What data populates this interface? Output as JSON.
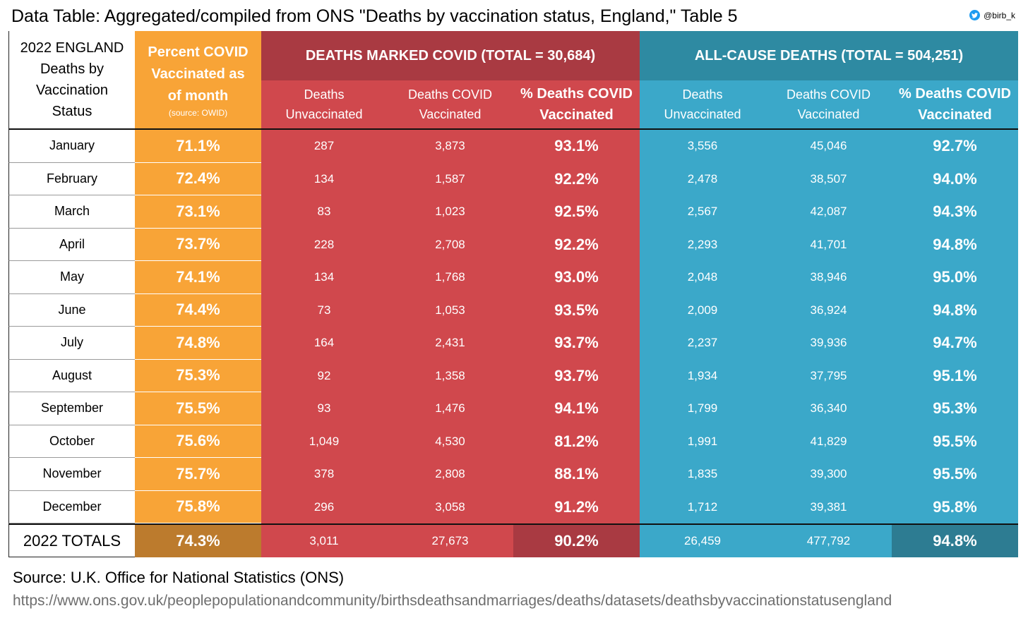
{
  "title": "Data Table: Aggregated/compiled from ONS \"Deaths by vaccination status, England,\" Table 5",
  "handle": "@birb_k",
  "icon": "twitter-bird-icon",
  "header": {
    "label": "2022 ENGLAND Deaths by Vaccination Status",
    "pct_title": "Percent COVID Vaccinated as of month",
    "pct_source": "(source: OWID)",
    "covid_group": "DEATHS MARKED COVID (TOTAL = 30,684)",
    "all_group": "ALL-CAUSE DEATHS (TOTAL = 504,251)",
    "covid_cols": [
      "Deaths Unvaccinated",
      "Deaths COVID Vaccinated",
      "% Deaths COVID Vaccinated"
    ],
    "all_cols": [
      "Deaths Unvaccinated",
      "Deaths COVID Vaccinated",
      "% Deaths COVID Vaccinated"
    ]
  },
  "rows": [
    [
      "January",
      "71.1%",
      "287",
      "3,873",
      "93.1%",
      "3,556",
      "45,046",
      "92.7%"
    ],
    [
      "February",
      "72.4%",
      "134",
      "1,587",
      "92.2%",
      "2,478",
      "38,507",
      "94.0%"
    ],
    [
      "March",
      "73.1%",
      "83",
      "1,023",
      "92.5%",
      "2,567",
      "42,087",
      "94.3%"
    ],
    [
      "April",
      "73.7%",
      "228",
      "2,708",
      "92.2%",
      "2,293",
      "41,701",
      "94.8%"
    ],
    [
      "May",
      "74.1%",
      "134",
      "1,768",
      "93.0%",
      "2,048",
      "38,946",
      "95.0%"
    ],
    [
      "June",
      "74.4%",
      "73",
      "1,053",
      "93.5%",
      "2,009",
      "36,924",
      "94.8%"
    ],
    [
      "July",
      "74.8%",
      "164",
      "2,431",
      "93.7%",
      "2,237",
      "39,936",
      "94.7%"
    ],
    [
      "August",
      "75.3%",
      "92",
      "1,358",
      "93.7%",
      "1,934",
      "37,795",
      "95.1%"
    ],
    [
      "September",
      "75.5%",
      "93",
      "1,476",
      "94.1%",
      "1,799",
      "36,340",
      "95.3%"
    ],
    [
      "October",
      "75.6%",
      "1,049",
      "4,530",
      "81.2%",
      "1,991",
      "41,829",
      "95.5%"
    ],
    [
      "November",
      "75.7%",
      "378",
      "2,808",
      "88.1%",
      "1,835",
      "39,300",
      "95.5%"
    ],
    [
      "December",
      "75.8%",
      "296",
      "3,058",
      "91.2%",
      "1,712",
      "39,381",
      "95.8%"
    ]
  ],
  "totals": [
    "2022 TOTALS",
    "74.3%",
    "3,011",
    "27,673",
    "90.2%",
    "26,459",
    "477,792",
    "94.8%"
  ],
  "source": "Source: U.K. Office for National Statistics (ONS)",
  "url": "https://www.ons.gov.uk/peoplepopulationandcommunity/birthsdeathsandmarriages/deaths/datasets/deathsbyvaccinationstatusengland"
}
